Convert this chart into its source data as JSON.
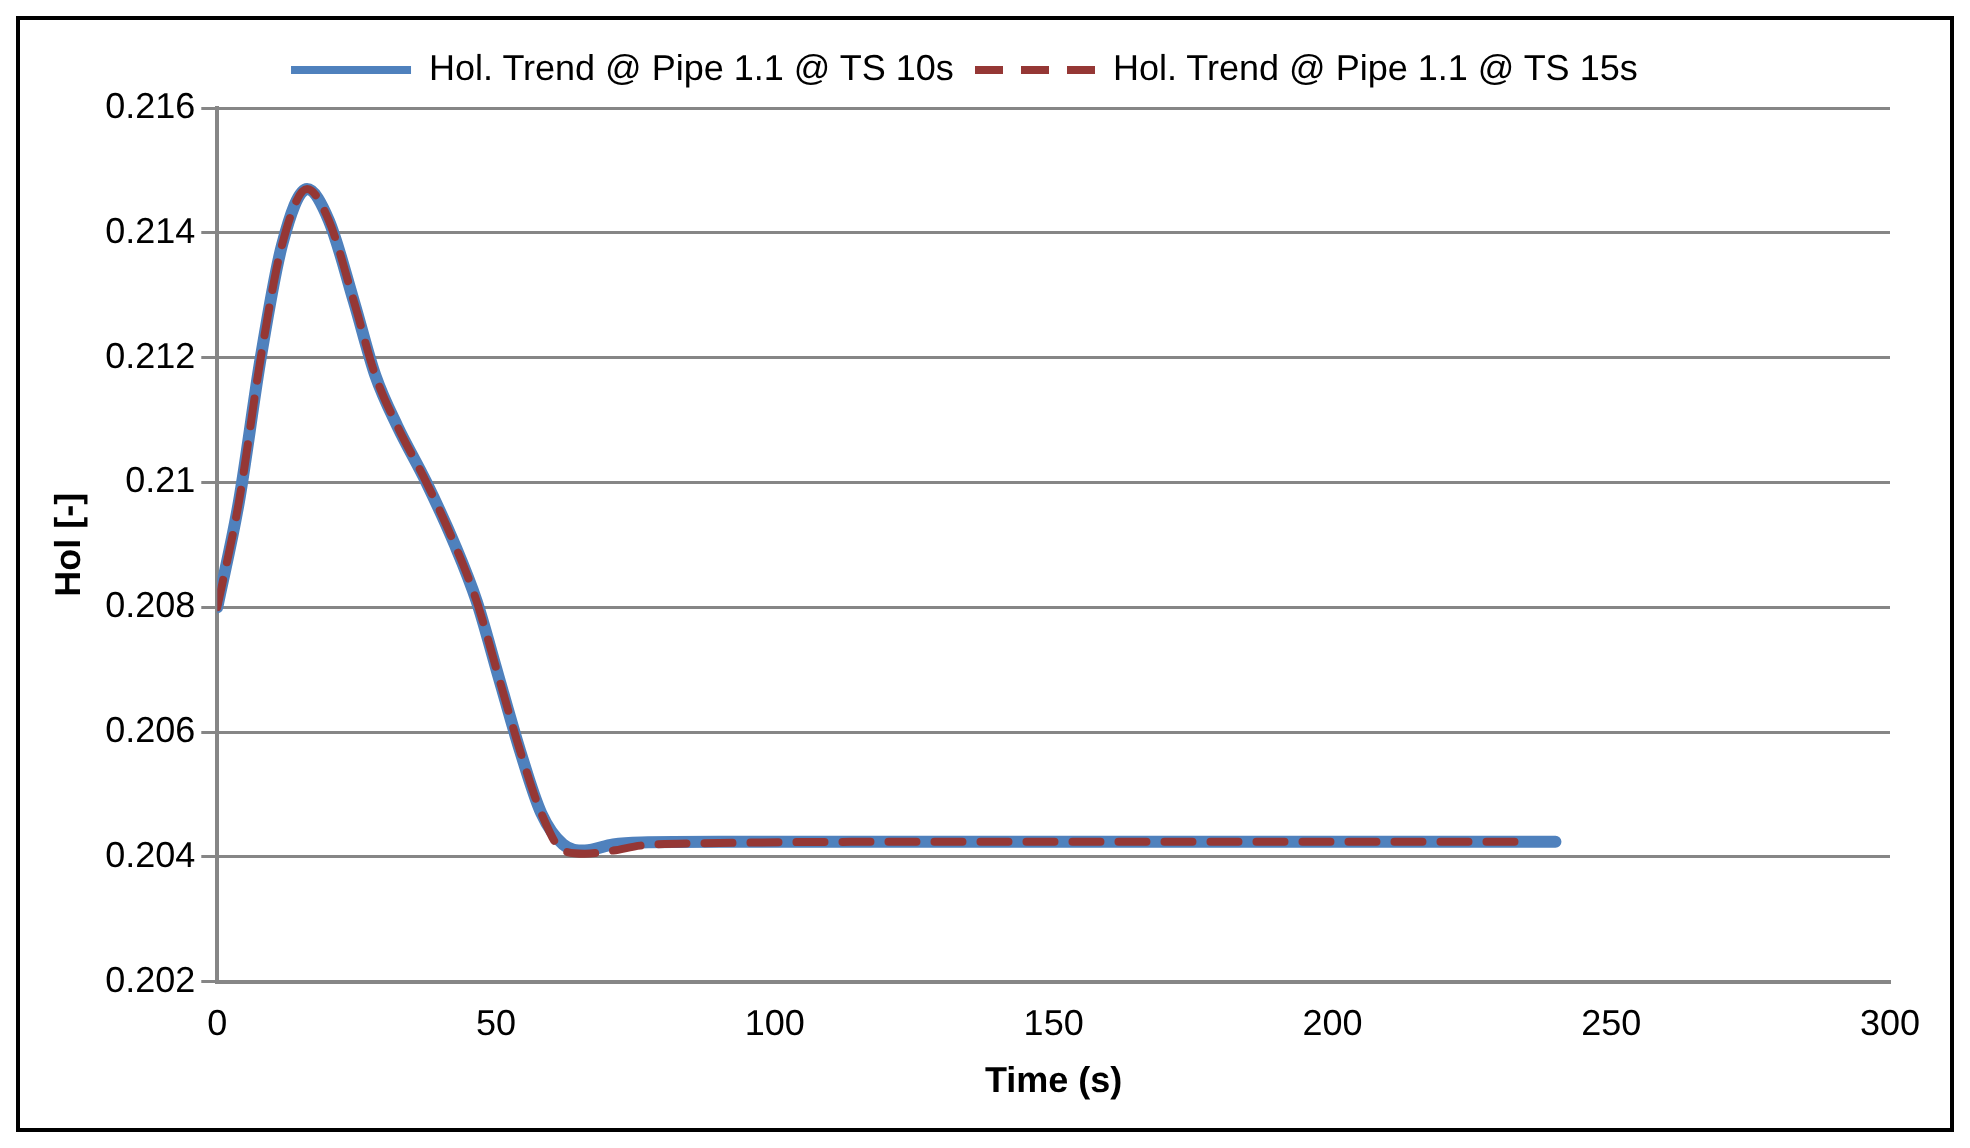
{
  "chart_data": {
    "type": "line",
    "xlabel": "Time (s)",
    "ylabel": "Hol [-]",
    "xlim": [
      0,
      300
    ],
    "xticks": [
      0,
      50,
      100,
      150,
      200,
      250,
      300
    ],
    "ylim": [
      0.202,
      0.216
    ],
    "yticks": [
      0.202,
      0.204,
      0.206,
      0.208,
      0.21,
      0.212,
      0.214,
      0.216
    ],
    "grid": "y",
    "legend": "top",
    "marker": "none",
    "x": [
      0,
      3.9,
      7.8,
      11.6,
      16.1,
      20,
      24.5,
      28.4,
      32.3,
      37.5,
      42.6,
      46.5,
      50.4,
      54.3,
      58.1,
      62,
      65.9,
      71,
      76,
      90,
      120,
      150,
      180,
      210,
      240
    ],
    "series": [
      {
        "name": "Hol. Trend @ Pipe 1.1 @ TS 10s",
        "color": "#4f81bd",
        "line_style": "solid",
        "values": [
          0.208,
          0.2097,
          0.212,
          0.2138,
          0.2147,
          0.2142,
          0.2129,
          0.2117,
          0.2109,
          0.21,
          0.209,
          0.2081,
          0.2069,
          0.2057,
          0.2047,
          0.2042,
          0.2041,
          0.2042,
          0.20423,
          0.20424,
          0.20424,
          0.20424,
          0.20424,
          0.20424,
          0.20424
        ]
      },
      {
        "name": "Hol. Trend @ Pipe 1.1 @ TS 15s",
        "color": "#953735",
        "line_style": "dashed",
        "x": [
          0,
          3.9,
          7.8,
          11.6,
          16.1,
          20,
          24.5,
          28.4,
          32.3,
          37.5,
          42.6,
          46.5,
          50.4,
          54.3,
          58.1,
          62,
          65.9,
          71,
          76,
          90,
          120,
          150,
          180,
          210,
          233
        ],
        "values": [
          0.208,
          0.2097,
          0.212,
          0.2138,
          0.2147,
          0.2142,
          0.2129,
          0.2117,
          0.2109,
          0.21,
          0.209,
          0.2081,
          0.2069,
          0.2057,
          0.2047,
          0.2041,
          0.20405,
          0.2041,
          0.20418,
          0.20422,
          0.20424,
          0.20424,
          0.20424,
          0.20424,
          0.20424
        ]
      }
    ]
  }
}
